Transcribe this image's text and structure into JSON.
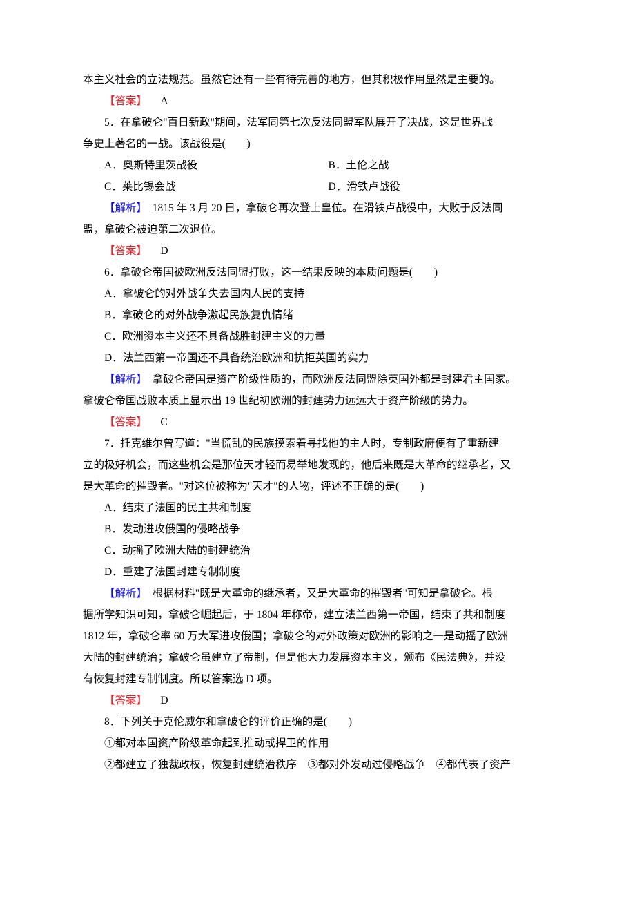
{
  "labels": {
    "analysis": "【解析】",
    "answer": "【答案】"
  },
  "intro_text": "本主义社会的立法规范。虽然它还有一些有待完善的地方，但其积极作用显然是主要的。",
  "intro_answer": "A",
  "q5": {
    "stem1": "5．在拿破仑\"百日新政\"期间，法军同第七次反法同盟军队展开了决战，这是世界战",
    "stem2": "争史上著名的一战。该战役是(　　)",
    "optA": "A．奥斯特里茨战役",
    "optB": "B．土伦之战",
    "optC": "C．莱比锡会战",
    "optD": "D．滑铁卢战役",
    "analysis1": "　1815 年 3 月 20 日，拿破仑再次登上皇位。在滑铁卢战役中，大败于反法同",
    "analysis2": "盟，拿破仑被迫第二次退位。",
    "answer": "D"
  },
  "q6": {
    "stem": "6．拿破仑帝国被欧洲反法同盟打败，这一结果反映的本质问题是(　　)",
    "optA": "A．拿破仑的对外战争失去国内人民的支持",
    "optB": "B．拿破仑的对外战争激起民族复仇情绪",
    "optC": "C．欧洲资本主义还不具备战胜封建主义的力量",
    "optD": "D．法兰西第一帝国还不具备统治欧洲和抗拒英国的实力",
    "analysis1": "　拿破仑帝国是资产阶级性质的，而欧洲反法同盟除英国外都是封建君主国家。",
    "analysis2": "拿破仑帝国战败本质上显示出 19 世纪初欧洲的封建势力远远大于资产阶级的势力。",
    "answer": "C"
  },
  "q7": {
    "stem1": "7．托克维尔曾写道：\"当慌乱的民族摸索着寻找他的主人时，专制政府便有了重新建",
    "stem2": "立的极好机会，而这些机会是那位天才轻而易举地发现的，他后来既是大革命的继承者，又",
    "stem3": "是大革命的摧毁者。\"对这位被称为\"天才\"的人物，评述不正确的是(　　)",
    "optA": "A．结束了法国的民主共和制度",
    "optB": "B．发动进攻俄国的侵略战争",
    "optC": "C．动摇了欧洲大陆的封建统治",
    "optD": "D．重建了法国封建专制制度",
    "analysis1": "　根据材料\"既是大革命的继承者，又是大革命的摧毁者\"可知是拿破仑。根",
    "analysis2": "据所学知识可知，拿破仑崛起后，于 1804 年称帝，建立法兰西第一帝国，结束了共和制度",
    "analysis3": "1812 年，拿破仑率 60 万大军进攻俄国；拿破仑的对外政策对欧洲的影响之一是动摇了欧洲",
    "analysis4": "大陆的封建统治；拿破仑虽建立了帝制，但是他大力发展资本主义，颁布《民法典》，并没",
    "analysis5": "有恢复封建专制制度。所以答案选 D 项。",
    "answer": "D"
  },
  "q8": {
    "stem": "8．下列关于克伦威尔和拿破仑的评价正确的是(　　)",
    "sub1": "①都对本国资产阶级革命起到推动或捍卫的作用",
    "sub2": "②都建立了独裁政权，恢复封建统治秩序　③都对外发动过侵略战争　④都代表了资产"
  }
}
